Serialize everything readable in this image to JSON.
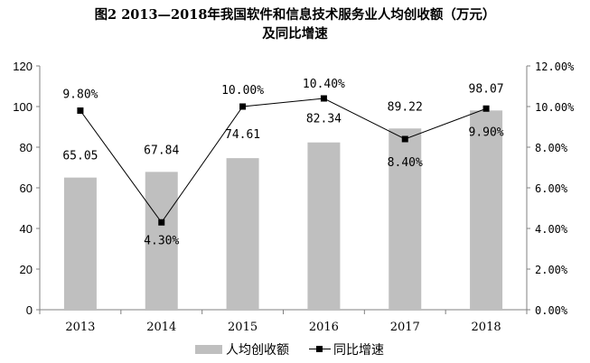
{
  "title_line1": "图2   2013—2018年我国软件和信息技术服务业人均创收额（万元）",
  "title_line2": "及同比增速",
  "legend": {
    "bar_label": "人均创收额",
    "line_label": "同比增速"
  },
  "colors": {
    "bar": "#bfbfbf",
    "line": "#000000",
    "axis": "#808080"
  },
  "chart_data": {
    "type": "bar",
    "categories": [
      "2013",
      "2014",
      "2015",
      "2016",
      "2017",
      "2018"
    ],
    "series": [
      {
        "name": "人均创收额",
        "type": "bar",
        "axis": "left",
        "values": [
          65.05,
          67.84,
          74.61,
          82.34,
          89.22,
          98.07
        ],
        "labels": [
          "65.05",
          "67.84",
          "74.61",
          "82.34",
          "89.22",
          "98.07"
        ]
      },
      {
        "name": "同比增速",
        "type": "line",
        "axis": "right",
        "values": [
          9.8,
          4.3,
          10.0,
          10.4,
          8.4,
          9.9
        ],
        "labels": [
          "9.80%",
          "4.30%",
          "10.00%",
          "10.40%",
          "8.40%",
          "9.90%"
        ]
      }
    ],
    "ylim_left": [
      0,
      120
    ],
    "yticks_left": [
      "0",
      "20",
      "40",
      "60",
      "80",
      "100",
      "120"
    ],
    "ylim_right": [
      0,
      12
    ],
    "yticks_right": [
      "0.00%",
      "2.00%",
      "4.00%",
      "6.00%",
      "8.00%",
      "10.00%",
      "12.00%"
    ],
    "legend_position": "bottom",
    "grid": false
  }
}
